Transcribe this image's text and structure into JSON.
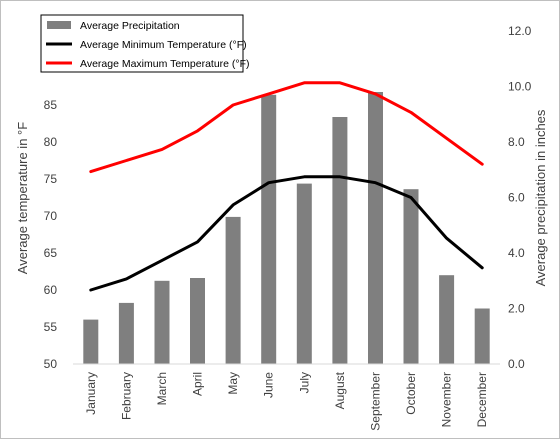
{
  "chart_data": {
    "type": "bar+line",
    "categories": [
      "January",
      "February",
      "March",
      "April",
      "May",
      "June",
      "July",
      "August",
      "September",
      "October",
      "November",
      "December"
    ],
    "series": [
      {
        "name": "Average Precipitation",
        "kind": "bar",
        "axis": "right",
        "color": "#7f7f7f",
        "values": [
          1.6,
          2.2,
          3.0,
          3.1,
          5.3,
          9.7,
          6.5,
          8.9,
          9.8,
          6.3,
          3.2,
          2.0
        ]
      },
      {
        "name": "Average Minimum Temperature (°F)",
        "kind": "line",
        "axis": "left",
        "color": "#000000",
        "values": [
          60.0,
          61.5,
          64.0,
          66.5,
          71.5,
          74.5,
          75.3,
          75.3,
          74.5,
          72.5,
          67.0,
          63.0
        ]
      },
      {
        "name": "Average Maximum Temperature (°F)",
        "kind": "line",
        "axis": "left",
        "color": "#ff0000",
        "values": [
          76.0,
          77.5,
          79.0,
          81.5,
          85.0,
          86.5,
          88.0,
          88.0,
          86.5,
          84.0,
          80.5,
          77.0
        ]
      }
    ],
    "y_left": {
      "label": "Average temperature in °F",
      "min": 50,
      "max": 85,
      "ticks": [
        "50",
        "55",
        "60",
        "65",
        "70",
        "75",
        "80",
        "85"
      ]
    },
    "y_right": {
      "label": "Average precipitation in inches",
      "min": 0,
      "max": 12,
      "ticks": [
        "0.0",
        "2.0",
        "4.0",
        "6.0",
        "8.0",
        "10.0",
        "12.0"
      ]
    },
    "legend_position": "top-left",
    "grid": false
  }
}
